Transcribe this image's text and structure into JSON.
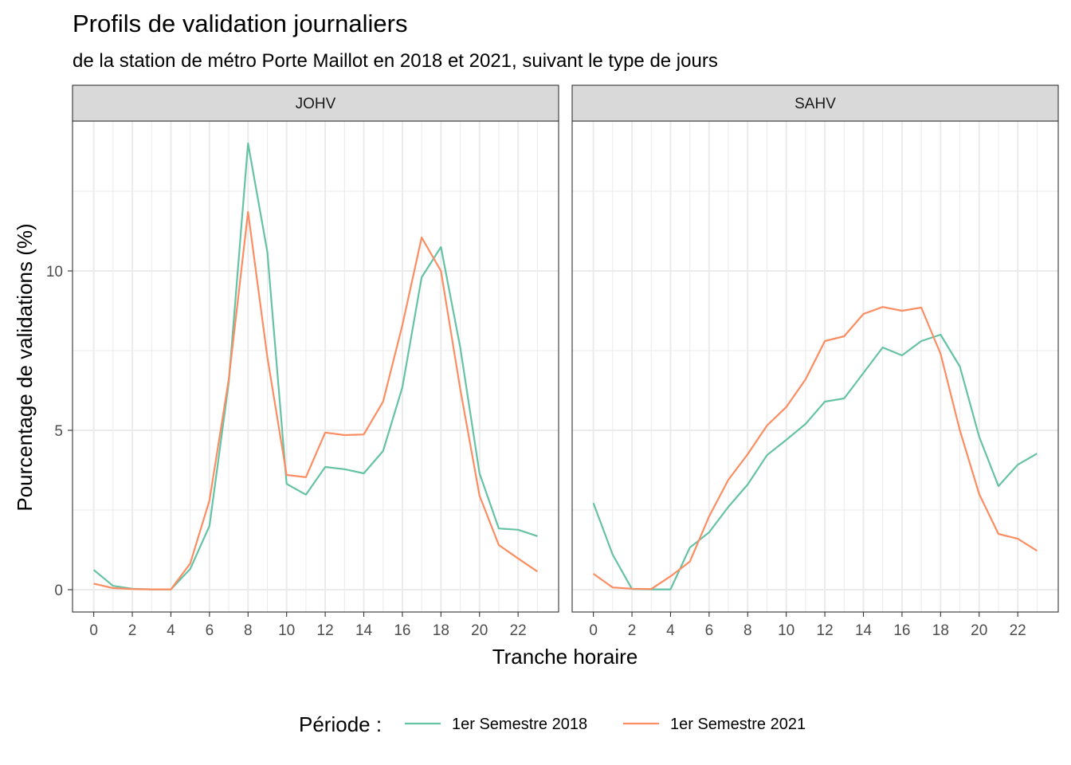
{
  "chart_data": {
    "type": "line",
    "title": "Profils de validation journaliers",
    "subtitle": "de la station de métro Porte Maillot en 2018 et 2021, suivant le type de jours",
    "xlabel": "Tranche horaire",
    "ylabel": "Pourcentage de validations (%)",
    "xlim": [
      -1.1,
      24.1
    ],
    "ylim": [
      -0.7,
      14.7
    ],
    "x_ticks": [
      0,
      2,
      4,
      6,
      8,
      10,
      12,
      14,
      16,
      18,
      20,
      22
    ],
    "x_tick_labels": [
      "0",
      "2",
      "4",
      "6",
      "8",
      "10",
      "12",
      "14",
      "16",
      "18",
      "20",
      "22"
    ],
    "y_ticks": [
      0,
      5,
      10
    ],
    "y_tick_labels": [
      "0",
      "5",
      "10"
    ],
    "grid": true,
    "legend_position": "bottom",
    "legend_title": "Période :",
    "colors": {
      "1er Semestre 2018": "#66c2a5",
      "1er Semestre 2021": "#fc8d62"
    },
    "facets": [
      {
        "label": "JOHV",
        "x": [
          0,
          1,
          2,
          3,
          4,
          5,
          6,
          7,
          8,
          9,
          10,
          11,
          12,
          13,
          14,
          15,
          16,
          17,
          18,
          19,
          20,
          21,
          22,
          23
        ],
        "series": [
          {
            "name": "1er Semestre 2018",
            "values": [
              0.62,
              0.12,
              0.03,
              0.01,
              0.01,
              0.65,
              2.0,
              6.5,
              14.0,
              10.6,
              3.32,
              2.98,
              3.85,
              3.78,
              3.65,
              4.35,
              6.35,
              9.8,
              10.75,
              7.6,
              3.65,
              1.92,
              1.88,
              1.68
            ]
          },
          {
            "name": "1er Semestre 2021",
            "values": [
              0.19,
              0.05,
              0.02,
              0.01,
              0.01,
              0.82,
              2.8,
              6.6,
              11.85,
              7.3,
              3.6,
              3.53,
              4.93,
              4.85,
              4.87,
              5.9,
              8.3,
              11.05,
              10.0,
              6.3,
              2.95,
              1.4,
              0.98,
              0.57
            ]
          }
        ]
      },
      {
        "label": "SAHV",
        "x": [
          0,
          1,
          2,
          3,
          4,
          5,
          6,
          7,
          8,
          9,
          10,
          11,
          12,
          13,
          14,
          15,
          16,
          17,
          18,
          19,
          20,
          21,
          22,
          23
        ],
        "series": [
          {
            "name": "1er Semestre 2018",
            "values": [
              2.72,
              1.1,
              0.02,
              0.01,
              0.01,
              1.32,
              1.8,
              2.6,
              3.3,
              4.22,
              4.7,
              5.2,
              5.9,
              6.0,
              6.8,
              7.6,
              7.35,
              7.8,
              8.0,
              7.0,
              4.8,
              3.25,
              3.92,
              4.27
            ]
          },
          {
            "name": "1er Semestre 2021",
            "values": [
              0.5,
              0.07,
              0.03,
              0.02,
              0.42,
              0.88,
              2.3,
              3.45,
              4.25,
              5.15,
              5.73,
              6.6,
              7.8,
              7.95,
              8.65,
              8.87,
              8.75,
              8.85,
              7.4,
              5.0,
              3.0,
              1.75,
              1.6,
              1.22
            ]
          }
        ]
      }
    ]
  }
}
